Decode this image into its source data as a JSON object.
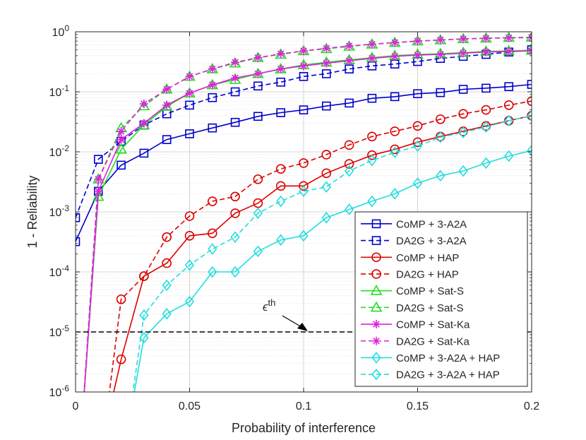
{
  "chart_data": {
    "type": "line",
    "title": "",
    "xlabel": "Probability of interference",
    "ylabel": "1 - Reliability",
    "yscale": "log",
    "xlim": [
      0,
      0.2
    ],
    "ylim": [
      1e-06,
      1
    ],
    "x_ticks": [
      0,
      0.05,
      0.1,
      0.15,
      0.2
    ],
    "x_tick_labels": [
      "0",
      "0.05",
      "0.1",
      "0.15",
      "0.2"
    ],
    "y_ticks": [
      1e-06,
      1e-05,
      0.0001,
      0.001,
      0.01,
      0.1,
      1
    ],
    "y_tick_labels": [
      {
        "base": "10",
        "exp": "-6"
      },
      {
        "base": "10",
        "exp": "-5"
      },
      {
        "base": "10",
        "exp": "-4"
      },
      {
        "base": "10",
        "exp": "-3"
      },
      {
        "base": "10",
        "exp": "-2"
      },
      {
        "base": "10",
        "exp": "-1"
      },
      {
        "base": "10",
        "exp": "0"
      }
    ],
    "grid": true,
    "legend_position": "bottom-right",
    "threshold": {
      "value": 1e-05,
      "label_symbol": "ϵ",
      "label_sup": "th",
      "color": "#000000"
    },
    "x": [
      0,
      0.01,
      0.02,
      0.03,
      0.04,
      0.05,
      0.06,
      0.07,
      0.08,
      0.09,
      0.1,
      0.11,
      0.12,
      0.13,
      0.14,
      0.15,
      0.16,
      0.17,
      0.18,
      0.19,
      0.2
    ],
    "series": [
      {
        "name": "CoMP + 3-A2A",
        "color": "#0000cc",
        "dash": false,
        "marker": "square",
        "values": [
          0.00032,
          0.0022,
          0.006,
          0.0095,
          0.016,
          0.02,
          0.025,
          0.031,
          0.039,
          0.045,
          0.05,
          0.058,
          0.065,
          0.078,
          0.083,
          0.093,
          0.097,
          0.11,
          0.115,
          0.122,
          0.133
        ]
      },
      {
        "name": "DA2G + 3-A2A",
        "color": "#0000cc",
        "dash": true,
        "marker": "square",
        "values": [
          0.0008,
          0.0075,
          0.015,
          0.028,
          0.043,
          0.06,
          0.08,
          0.1,
          0.125,
          0.145,
          0.18,
          0.2,
          0.24,
          0.27,
          0.29,
          0.32,
          0.36,
          0.39,
          0.42,
          0.46,
          0.5
        ]
      },
      {
        "name": "CoMP + HAP",
        "color": "#dd0000",
        "dash": false,
        "marker": "circle",
        "values": [
          null,
          null,
          3.5e-06,
          8.5e-05,
          0.00014,
          0.0004,
          0.00044,
          0.00095,
          0.0014,
          0.0027,
          0.0027,
          0.0044,
          0.0063,
          0.0088,
          0.011,
          0.0145,
          0.018,
          0.022,
          0.027,
          0.033,
          0.04
        ]
      },
      {
        "name": "DA2G + HAP",
        "color": "#dd0000",
        "dash": true,
        "marker": "circle",
        "values": [
          null,
          null,
          3.5e-05,
          8.5e-05,
          0.00038,
          0.00085,
          0.0015,
          0.0018,
          0.0035,
          0.0052,
          0.0065,
          0.009,
          0.013,
          0.018,
          0.022,
          0.027,
          0.035,
          0.043,
          0.05,
          0.06,
          0.07
        ]
      },
      {
        "name": "CoMP + Sat-S",
        "color": "#22dd22",
        "dash": false,
        "marker": "triangle",
        "values": [
          null,
          0.0018,
          0.011,
          0.028,
          0.057,
          0.095,
          0.13,
          0.16,
          0.2,
          0.24,
          0.28,
          0.31,
          0.34,
          0.37,
          0.4,
          0.42,
          0.43,
          0.45,
          0.47,
          0.48,
          0.49
        ]
      },
      {
        "name": "DA2G + Sat-S",
        "color": "#22dd22",
        "dash": true,
        "marker": "triangle",
        "values": [
          null,
          0.0035,
          0.025,
          0.058,
          0.11,
          0.18,
          0.24,
          0.3,
          0.37,
          0.42,
          0.48,
          0.52,
          0.57,
          0.62,
          0.66,
          0.7,
          0.73,
          0.76,
          0.78,
          0.8,
          0.81
        ]
      },
      {
        "name": "CoMP + Sat-Ka",
        "color": "#dd22dd",
        "dash": false,
        "marker": "asterisk",
        "values": [
          null,
          0.0022,
          0.016,
          0.03,
          0.06,
          0.095,
          0.13,
          0.17,
          0.2,
          0.24,
          0.27,
          0.3,
          0.33,
          0.36,
          0.39,
          0.41,
          0.42,
          0.44,
          0.46,
          0.47,
          0.48
        ]
      },
      {
        "name": "DA2G + Sat-Ka",
        "color": "#dd22dd",
        "dash": true,
        "marker": "asterisk",
        "values": [
          null,
          0.0035,
          0.022,
          0.063,
          0.11,
          0.18,
          0.24,
          0.31,
          0.37,
          0.43,
          0.48,
          0.53,
          0.58,
          0.62,
          0.66,
          0.7,
          0.73,
          0.76,
          0.78,
          0.79,
          0.8
        ]
      },
      {
        "name": "CoMP + 3-A2A + HAP",
        "color": "#22dddd",
        "dash": false,
        "marker": "diamond",
        "values": [
          null,
          null,
          null,
          8e-06,
          2e-05,
          3.2e-05,
          0.0001,
          0.0001,
          0.00022,
          0.00034,
          0.0004,
          0.0008,
          0.0011,
          0.0015,
          0.002,
          0.003,
          0.004,
          0.0048,
          0.0065,
          0.0085,
          0.0105
        ]
      },
      {
        "name": "DA2G + 3-A2A + HAP",
        "color": "#22dddd",
        "dash": true,
        "marker": "diamond",
        "values": [
          null,
          null,
          null,
          1.9e-05,
          6e-05,
          0.00013,
          0.00024,
          0.00038,
          0.00095,
          0.0015,
          0.0022,
          0.0026,
          0.0048,
          0.0072,
          0.0098,
          0.0125,
          0.0175,
          0.021,
          0.026,
          0.033,
          0.04
        ]
      }
    ]
  }
}
